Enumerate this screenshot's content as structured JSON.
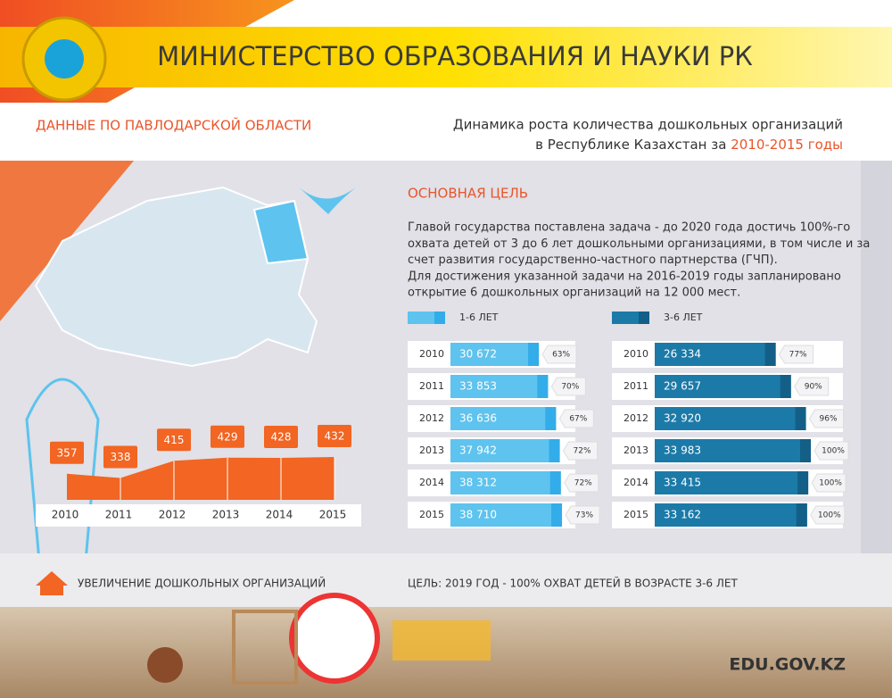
{
  "header": {
    "title": "МИНИСТЕРСТВО ОБРАЗОВАНИЯ И НАУКИ РК"
  },
  "region": "ДАННЫЕ ПО ПАВЛОДАРСКОЙ ОБЛАСТИ",
  "subtitle": {
    "line1": "Динамика роста количества дошкольных организаций",
    "line2": "в Республике Казахстан за ",
    "highlight": "2010-2015 годы"
  },
  "goal": {
    "title": "ОСНОВНАЯ ЦЕЛЬ",
    "lines": [
      "Главой государства поставлена задача - до 2020 года достичь 100%-го",
      "охвата детей от 3 до 6 лет дошкольными организациями, в том числе и за",
      "счет развития государственно-частного партнерства (ГЧП).",
      "Для достижения указанной задачи на 2016-2019 годы запланировано",
      "открытие 6 дошкольных организаций на 12 000 мест."
    ]
  },
  "chart_data": [
    {
      "type": "area",
      "categories": [
        "2010",
        "2011",
        "2012",
        "2013",
        "2014",
        "2015"
      ],
      "values": [
        357,
        338,
        415,
        429,
        428,
        432
      ],
      "color": "#f26522",
      "caption": "УВЕЛИЧЕНИЕ ДОШКОЛЬНЫХ ОРГАНИЗАЦИЙ"
    },
    {
      "type": "hbar",
      "name": "1-6 ЛЕТ",
      "color": "#5ec3ee",
      "accent": "#33acea",
      "categories": [
        "2010",
        "2011",
        "2012",
        "2013",
        "2014",
        "2015"
      ],
      "values": [
        30672,
        33853,
        36636,
        37942,
        38312,
        38710
      ],
      "value_labels": [
        "30 672",
        "33 853",
        "36 636",
        "37 942",
        "38 312",
        "38 710"
      ],
      "coverage": [
        "63%",
        "70%",
        "67%",
        "72%",
        "72%",
        "73%"
      ]
    },
    {
      "type": "hbar",
      "name": "3-6 ЛЕТ",
      "color": "#1b7aa8",
      "accent": "#135f87",
      "categories": [
        "2010",
        "2011",
        "2012",
        "2013",
        "2014",
        "2015"
      ],
      "values": [
        26334,
        29657,
        32920,
        33983,
        33415,
        33162
      ],
      "value_labels": [
        "26 334",
        "29 657",
        "32 920",
        "33 983",
        "33 415",
        "33 162"
      ],
      "coverage": [
        "77%",
        "90%",
        "96%",
        "100%",
        "100%",
        "100%"
      ]
    }
  ],
  "footer": {
    "goal": "ЦЕЛЬ: 2019 ГОД - 100% ОХВАТ ДЕТЕЙ В ВОЗРАСТЕ 3-6 ЛЕТ",
    "site": "EDU.GOV.KZ"
  }
}
